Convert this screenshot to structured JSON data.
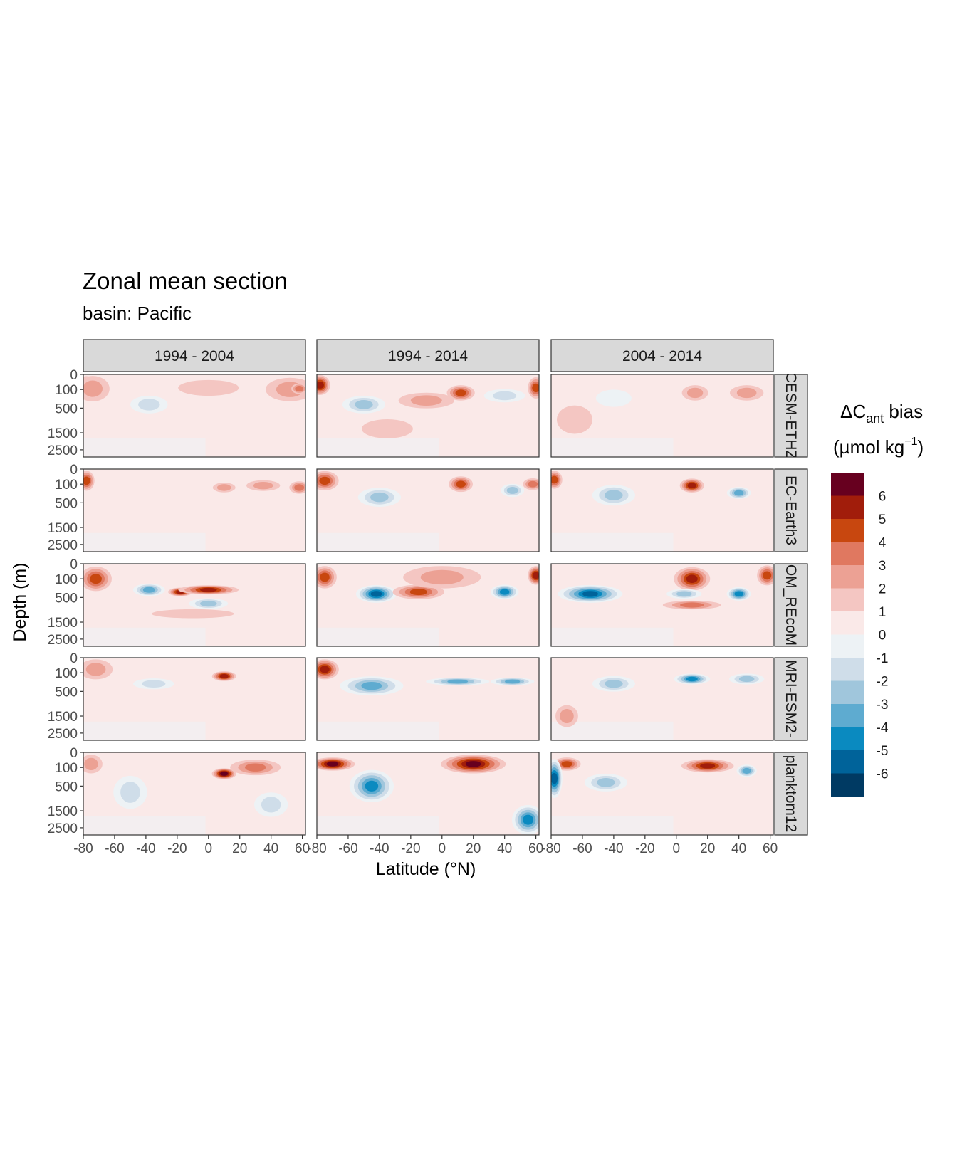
{
  "chart_data": {
    "type": "heatmap",
    "title": "Zonal mean section",
    "subtitle": "basin: Pacific",
    "xlabel": "Latitude (°N)",
    "ylabel": "Depth (m)",
    "column_facets": [
      "1994 - 2004",
      "1994 - 2014",
      "2004 - 2014"
    ],
    "row_facets": [
      "CESM-ETHZ",
      "EC-Earth3",
      "FESOM_REcoM",
      "MRI-ESM2-",
      "planktom12"
    ],
    "row_facet_labels_visible": [
      "CESM-ETHZ",
      "EC-Earth3",
      "OM_REcoM",
      "MRI-ESM2-",
      "planktom12"
    ],
    "x_ticks": [
      -80,
      -60,
      -40,
      -20,
      0,
      20,
      40,
      60
    ],
    "x_tick_labels": [
      "-80",
      "-60",
      "-40",
      "-20",
      "0",
      "20",
      "40",
      "60"
    ],
    "xlim": [
      -80,
      62
    ],
    "y_ticks": [
      0,
      100,
      500,
      1500,
      2500
    ],
    "y_tick_labels": [
      "0",
      "100",
      "500",
      "1500",
      "2500"
    ],
    "ylim": [
      3000,
      0
    ],
    "y_scale": "reversed sqrt",
    "legend": {
      "title_prefix": "ΔC",
      "title_sub": "ant",
      "title_suffix": " bias",
      "unit_text": "(µmol kg",
      "unit_sup": "−1",
      "unit_close": ")",
      "placement": "right",
      "levels": [
        {
          "label": "6",
          "color": "#67001f"
        },
        {
          "label": "5",
          "color": "#a11d0b"
        },
        {
          "label": "4",
          "color": "#c8470f"
        },
        {
          "label": "3",
          "color": "#e07860"
        },
        {
          "label": "2",
          "color": "#eca194"
        },
        {
          "label": "1",
          "color": "#f4c6c2"
        },
        {
          "label": "0",
          "color": "#fae9e8"
        },
        {
          "label": "-1",
          "color": "#edf2f5"
        },
        {
          "label": "-2",
          "color": "#cfdde9"
        },
        {
          "label": "-3",
          "color": "#a0c6dc"
        },
        {
          "label": "-4",
          "color": "#5eabd0"
        },
        {
          "label": "-5",
          "color": "#0a8ac0"
        },
        {
          "label": "-6",
          "color": "#00639a"
        }
      ],
      "bottom_color": "#003a63"
    },
    "features": [
      {
        "row": 0,
        "col": 0,
        "lat": -78,
        "depth": 60,
        "rx": 3,
        "rd": 80,
        "value": 5
      },
      {
        "row": 0,
        "col": 0,
        "lat": -74,
        "depth": 90,
        "rx": 8,
        "rd": 150,
        "value": 2
      },
      {
        "row": 0,
        "col": 0,
        "lat": -38,
        "depth": 400,
        "rx": 9,
        "rd": 200,
        "value": -2
      },
      {
        "row": 0,
        "col": 0,
        "lat": 0,
        "depth": 80,
        "rx": 18,
        "rd": 70,
        "value": 1
      },
      {
        "row": 0,
        "col": 0,
        "lat": 52,
        "depth": 100,
        "rx": 12,
        "rd": 100,
        "value": 2
      },
      {
        "row": 0,
        "col": 0,
        "lat": 58,
        "depth": 90,
        "rx": 3,
        "rd": 50,
        "value": 3
      },
      {
        "row": 0,
        "col": 1,
        "lat": -78,
        "depth": 50,
        "rx": 4,
        "rd": 90,
        "value": 5
      },
      {
        "row": 0,
        "col": 1,
        "lat": -50,
        "depth": 400,
        "rx": 10,
        "rd": 200,
        "value": -3
      },
      {
        "row": 0,
        "col": 1,
        "lat": -35,
        "depth": 1300,
        "rx": 15,
        "rd": 400,
        "value": 1
      },
      {
        "row": 0,
        "col": 1,
        "lat": -10,
        "depth": 300,
        "rx": 14,
        "rd": 150,
        "value": 2
      },
      {
        "row": 0,
        "col": 1,
        "lat": 12,
        "depth": 150,
        "rx": 6,
        "rd": 100,
        "value": 4
      },
      {
        "row": 0,
        "col": 1,
        "lat": 40,
        "depth": 200,
        "rx": 10,
        "rd": 100,
        "value": -2
      },
      {
        "row": 0,
        "col": 1,
        "lat": 60,
        "depth": 80,
        "rx": 3,
        "rd": 80,
        "value": 4
      },
      {
        "row": 0,
        "col": 2,
        "lat": -65,
        "depth": 900,
        "rx": 10,
        "rd": 500,
        "value": 1
      },
      {
        "row": 0,
        "col": 2,
        "lat": -40,
        "depth": 250,
        "rx": 10,
        "rd": 150,
        "value": -1
      },
      {
        "row": 0,
        "col": 2,
        "lat": 12,
        "depth": 150,
        "rx": 6,
        "rd": 100,
        "value": 2
      },
      {
        "row": 0,
        "col": 2,
        "lat": 45,
        "depth": 150,
        "rx": 8,
        "rd": 100,
        "value": 2
      },
      {
        "row": 1,
        "col": 0,
        "lat": -78,
        "depth": 60,
        "rx": 3,
        "rd": 80,
        "value": 4
      },
      {
        "row": 1,
        "col": 0,
        "lat": 10,
        "depth": 150,
        "rx": 5,
        "rd": 60,
        "value": 2
      },
      {
        "row": 1,
        "col": 0,
        "lat": 35,
        "depth": 120,
        "rx": 8,
        "rd": 60,
        "value": 2
      },
      {
        "row": 1,
        "col": 0,
        "lat": 58,
        "depth": 150,
        "rx": 4,
        "rd": 80,
        "value": 3
      },
      {
        "row": 1,
        "col": 1,
        "lat": -75,
        "depth": 60,
        "rx": 6,
        "rd": 70,
        "value": 4
      },
      {
        "row": 1,
        "col": 1,
        "lat": -40,
        "depth": 350,
        "rx": 10,
        "rd": 200,
        "value": -3
      },
      {
        "row": 1,
        "col": 1,
        "lat": 12,
        "depth": 100,
        "rx": 5,
        "rd": 80,
        "value": 4
      },
      {
        "row": 1,
        "col": 1,
        "lat": 45,
        "depth": 200,
        "rx": 5,
        "rd": 100,
        "value": -3
      },
      {
        "row": 1,
        "col": 1,
        "lat": 58,
        "depth": 100,
        "rx": 4,
        "rd": 60,
        "value": 3
      },
      {
        "row": 1,
        "col": 2,
        "lat": -78,
        "depth": 50,
        "rx": 3,
        "rd": 60,
        "value": 4
      },
      {
        "row": 1,
        "col": 2,
        "lat": -40,
        "depth": 300,
        "rx": 10,
        "rd": 200,
        "value": -3
      },
      {
        "row": 1,
        "col": 2,
        "lat": 10,
        "depth": 120,
        "rx": 5,
        "rd": 80,
        "value": 5
      },
      {
        "row": 1,
        "col": 2,
        "lat": 40,
        "depth": 250,
        "rx": 5,
        "rd": 100,
        "value": -4
      },
      {
        "row": 2,
        "col": 0,
        "lat": -72,
        "depth": 100,
        "rx": 7,
        "rd": 120,
        "value": 4
      },
      {
        "row": 2,
        "col": 0,
        "lat": -38,
        "depth": 300,
        "rx": 7,
        "rd": 120,
        "value": -4
      },
      {
        "row": 2,
        "col": 0,
        "lat": -18,
        "depth": 350,
        "rx": 5,
        "rd": 80,
        "value": 5
      },
      {
        "row": 2,
        "col": 0,
        "lat": 0,
        "depth": 300,
        "rx": 14,
        "rd": 80,
        "value": 5
      },
      {
        "row": 2,
        "col": 0,
        "lat": 0,
        "depth": 700,
        "rx": 9,
        "rd": 150,
        "value": -3
      },
      {
        "row": 2,
        "col": 0,
        "lat": -10,
        "depth": 1100,
        "rx": 25,
        "rd": 150,
        "value": 1
      },
      {
        "row": 2,
        "col": 1,
        "lat": -75,
        "depth": 80,
        "rx": 5,
        "rd": 100,
        "value": 4
      },
      {
        "row": 2,
        "col": 1,
        "lat": -42,
        "depth": 400,
        "rx": 9,
        "rd": 200,
        "value": -6
      },
      {
        "row": 2,
        "col": 1,
        "lat": -15,
        "depth": 350,
        "rx": 12,
        "rd": 150,
        "value": 4
      },
      {
        "row": 2,
        "col": 1,
        "lat": 0,
        "depth": 80,
        "rx": 20,
        "rd": 100,
        "value": 2
      },
      {
        "row": 2,
        "col": 1,
        "lat": 40,
        "depth": 350,
        "rx": 6,
        "rd": 150,
        "value": -5
      },
      {
        "row": 2,
        "col": 1,
        "lat": 60,
        "depth": 60,
        "rx": 3,
        "rd": 60,
        "value": 5
      },
      {
        "row": 2,
        "col": 2,
        "lat": -55,
        "depth": 400,
        "rx": 15,
        "rd": 200,
        "value": -6
      },
      {
        "row": 2,
        "col": 2,
        "lat": 10,
        "depth": 100,
        "rx": 8,
        "rd": 100,
        "value": 5
      },
      {
        "row": 2,
        "col": 2,
        "lat": 5,
        "depth": 400,
        "rx": 8,
        "rd": 100,
        "value": -3
      },
      {
        "row": 2,
        "col": 2,
        "lat": 10,
        "depth": 750,
        "rx": 14,
        "rd": 120,
        "value": 3
      },
      {
        "row": 2,
        "col": 2,
        "lat": 40,
        "depth": 400,
        "rx": 5,
        "rd": 150,
        "value": -5
      },
      {
        "row": 2,
        "col": 2,
        "lat": 58,
        "depth": 60,
        "rx": 4,
        "rd": 80,
        "value": 4
      },
      {
        "row": 3,
        "col": 0,
        "lat": -72,
        "depth": 60,
        "rx": 8,
        "rd": 80,
        "value": 2
      },
      {
        "row": 3,
        "col": 0,
        "lat": 10,
        "depth": 150,
        "rx": 5,
        "rd": 60,
        "value": 5
      },
      {
        "row": 3,
        "col": 0,
        "lat": -35,
        "depth": 300,
        "rx": 10,
        "rd": 100,
        "value": -2
      },
      {
        "row": 3,
        "col": 1,
        "lat": -75,
        "depth": 60,
        "rx": 6,
        "rd": 80,
        "value": 5
      },
      {
        "row": 3,
        "col": 1,
        "lat": -45,
        "depth": 350,
        "rx": 15,
        "rd": 200,
        "value": -4
      },
      {
        "row": 3,
        "col": 1,
        "lat": 10,
        "depth": 250,
        "rx": 15,
        "rd": 60,
        "value": -4
      },
      {
        "row": 3,
        "col": 1,
        "lat": 45,
        "depth": 250,
        "rx": 10,
        "rd": 60,
        "value": -4
      },
      {
        "row": 3,
        "col": 2,
        "lat": -40,
        "depth": 300,
        "rx": 10,
        "rd": 150,
        "value": -3
      },
      {
        "row": 3,
        "col": 2,
        "lat": 10,
        "depth": 200,
        "rx": 8,
        "rd": 80,
        "value": -5
      },
      {
        "row": 3,
        "col": 2,
        "lat": 45,
        "depth": 200,
        "rx": 8,
        "rd": 80,
        "value": -3
      },
      {
        "row": 3,
        "col": 2,
        "lat": -70,
        "depth": 1500,
        "rx": 5,
        "rd": 500,
        "value": 2
      },
      {
        "row": 4,
        "col": 0,
        "lat": -75,
        "depth": 60,
        "rx": 5,
        "rd": 60,
        "value": 2
      },
      {
        "row": 4,
        "col": 0,
        "lat": 10,
        "depth": 200,
        "rx": 5,
        "rd": 80,
        "value": 6
      },
      {
        "row": 4,
        "col": 0,
        "lat": 30,
        "depth": 100,
        "rx": 12,
        "rd": 80,
        "value": 3
      },
      {
        "row": 4,
        "col": 0,
        "lat": -50,
        "depth": 700,
        "rx": 8,
        "rd": 500,
        "value": -2
      },
      {
        "row": 4,
        "col": 0,
        "lat": 40,
        "depth": 1200,
        "rx": 8,
        "rd": 500,
        "value": -2
      },
      {
        "row": 4,
        "col": 1,
        "lat": -70,
        "depth": 60,
        "rx": 10,
        "rd": 50,
        "value": 6
      },
      {
        "row": 4,
        "col": 1,
        "lat": 20,
        "depth": 60,
        "rx": 15,
        "rd": 60,
        "value": 6
      },
      {
        "row": 4,
        "col": 1,
        "lat": -45,
        "depth": 500,
        "rx": 10,
        "rd": 400,
        "value": -5
      },
      {
        "row": 4,
        "col": 1,
        "lat": 55,
        "depth": 2000,
        "rx": 7,
        "rd": 800,
        "value": -5
      },
      {
        "row": 4,
        "col": 2,
        "lat": -70,
        "depth": 60,
        "rx": 6,
        "rd": 50,
        "value": 4
      },
      {
        "row": 4,
        "col": 2,
        "lat": 20,
        "depth": 80,
        "rx": 12,
        "rd": 60,
        "value": 5
      },
      {
        "row": 4,
        "col": 2,
        "lat": -78,
        "depth": 300,
        "rx": 3,
        "rd": 300,
        "value": -6
      },
      {
        "row": 4,
        "col": 2,
        "lat": -45,
        "depth": 400,
        "rx": 10,
        "rd": 200,
        "value": -3
      },
      {
        "row": 4,
        "col": 2,
        "lat": 45,
        "depth": 150,
        "rx": 4,
        "rd": 80,
        "value": -4
      }
    ]
  }
}
